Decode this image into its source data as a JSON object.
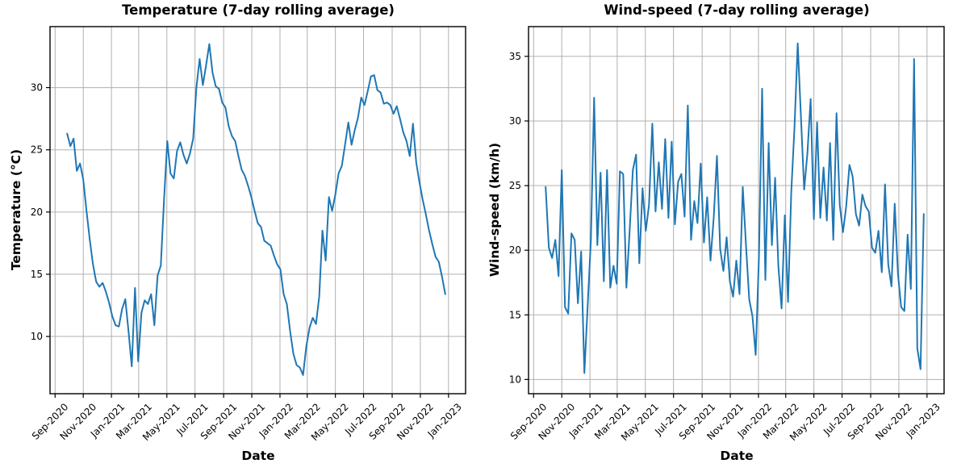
{
  "figure": {
    "background": "#ffffff",
    "grid_color": "#b0b0b0",
    "axis_color": "#000000",
    "line_color": "#1f77b4"
  },
  "chart_data": [
    {
      "id": "temperature",
      "type": "line",
      "title": "Temperature (7-day rolling average)",
      "xlabel": "Date",
      "ylabel": "Temperature (°C)",
      "line_color": "#1f77b4",
      "grid": true,
      "legend": "none",
      "ylim": [
        5.4,
        34.9
      ],
      "yticks": [
        10,
        15,
        20,
        25,
        30
      ],
      "xlim": [
        "2020-08-21",
        "2023-02-07"
      ],
      "xticks": [
        {
          "date": "2020-09-01",
          "label": "Sep-2020"
        },
        {
          "date": "2020-11-01",
          "label": "Nov-2020"
        },
        {
          "date": "2021-01-01",
          "label": "Jan-2021"
        },
        {
          "date": "2021-03-01",
          "label": "Mar-2021"
        },
        {
          "date": "2021-05-01",
          "label": "May-2021"
        },
        {
          "date": "2021-07-01",
          "label": "Jul-2021"
        },
        {
          "date": "2021-09-01",
          "label": "Sep-2021"
        },
        {
          "date": "2021-11-01",
          "label": "Nov-2021"
        },
        {
          "date": "2022-01-01",
          "label": "Jan-2022"
        },
        {
          "date": "2022-03-01",
          "label": "Mar-2022"
        },
        {
          "date": "2022-05-01",
          "label": "May-2022"
        },
        {
          "date": "2022-07-01",
          "label": "Jul-2022"
        },
        {
          "date": "2022-09-01",
          "label": "Sep-2022"
        },
        {
          "date": "2022-11-01",
          "label": "Nov-2022"
        },
        {
          "date": "2023-01-01",
          "label": "Jan-2023"
        }
      ],
      "series": {
        "name": "temperature",
        "start_date": "2020-09-27",
        "step_days": 7,
        "values": [
          26.3,
          25.3,
          25.9,
          23.3,
          23.9,
          22.6,
          20.1,
          17.8,
          15.8,
          14.4,
          14.0,
          14.3,
          13.6,
          12.7,
          11.6,
          10.9,
          10.8,
          12.2,
          13.0,
          10.4,
          7.6,
          13.9,
          8.0,
          11.9,
          12.9,
          12.6,
          13.4,
          10.9,
          14.9,
          15.7,
          21.0,
          25.7,
          23.1,
          22.7,
          24.9,
          25.6,
          24.6,
          23.9,
          24.7,
          25.9,
          30.0,
          32.3,
          30.2,
          31.8,
          33.5,
          31.2,
          30.1,
          29.9,
          28.8,
          28.4,
          26.9,
          26.1,
          25.7,
          24.5,
          23.4,
          22.9,
          22.1,
          21.2,
          20.1,
          19.1,
          18.8,
          17.7,
          17.5,
          17.3,
          16.5,
          15.8,
          15.4,
          13.4,
          12.6,
          10.4,
          8.6,
          7.7,
          7.5,
          6.9,
          9.2,
          10.7,
          11.5,
          11.0,
          13.2,
          18.5,
          16.1,
          21.2,
          20.1,
          21.4,
          23.1,
          23.7,
          25.4,
          27.2,
          25.4,
          26.6,
          27.6,
          29.2,
          28.6,
          29.7,
          30.9,
          31.0,
          29.8,
          29.6,
          28.7,
          28.8,
          28.6,
          27.9,
          28.5,
          27.5,
          26.4,
          25.7,
          24.5,
          27.1,
          24.0,
          22.4,
          21.0,
          19.8,
          18.5,
          17.4,
          16.4,
          16.0,
          14.8,
          13.4
        ]
      }
    },
    {
      "id": "wind-speed",
      "type": "line",
      "title": "Wind-speed (7-day rolling average)",
      "xlabel": "Date",
      "ylabel": "Wind-speed (km/h)",
      "line_color": "#1f77b4",
      "grid": true,
      "legend": "none",
      "ylim": [
        8.9,
        37.3
      ],
      "yticks": [
        10,
        15,
        20,
        25,
        30,
        35
      ],
      "xlim": [
        "2020-08-21",
        "2023-02-07"
      ],
      "xticks": [
        {
          "date": "2020-09-01",
          "label": "Sep-2020"
        },
        {
          "date": "2020-11-01",
          "label": "Nov-2020"
        },
        {
          "date": "2021-01-01",
          "label": "Jan-2021"
        },
        {
          "date": "2021-03-01",
          "label": "Mar-2021"
        },
        {
          "date": "2021-05-01",
          "label": "May-2021"
        },
        {
          "date": "2021-07-01",
          "label": "Jul-2021"
        },
        {
          "date": "2021-09-01",
          "label": "Sep-2021"
        },
        {
          "date": "2021-11-01",
          "label": "Nov-2021"
        },
        {
          "date": "2022-01-01",
          "label": "Jan-2022"
        },
        {
          "date": "2022-03-01",
          "label": "Mar-2022"
        },
        {
          "date": "2022-05-01",
          "label": "May-2022"
        },
        {
          "date": "2022-07-01",
          "label": "Jul-2022"
        },
        {
          "date": "2022-09-01",
          "label": "Sep-2022"
        },
        {
          "date": "2022-11-01",
          "label": "Nov-2022"
        },
        {
          "date": "2023-01-01",
          "label": "Jan-2023"
        }
      ],
      "series": {
        "name": "wind-speed",
        "start_date": "2020-09-27",
        "step_days": 7,
        "values": [
          24.9,
          20.2,
          19.4,
          20.8,
          18.0,
          26.2,
          15.6,
          15.1,
          21.3,
          20.8,
          15.9,
          19.9,
          10.5,
          15.6,
          20.8,
          31.8,
          20.4,
          26.0,
          17.6,
          26.2,
          17.1,
          18.8,
          17.4,
          26.1,
          25.9,
          17.1,
          21.5,
          26.2,
          27.4,
          19.0,
          24.8,
          21.5,
          23.5,
          29.8,
          23.0,
          26.8,
          23.2,
          28.6,
          22.5,
          28.4,
          22.0,
          25.3,
          25.9,
          22.6,
          31.2,
          20.8,
          23.8,
          22.1,
          26.7,
          20.6,
          24.1,
          19.2,
          22.5,
          27.3,
          20.1,
          18.4,
          21.0,
          17.6,
          16.4,
          19.2,
          16.6,
          24.9,
          20.4,
          16.2,
          14.9,
          11.9,
          19.4,
          32.5,
          17.7,
          28.3,
          20.4,
          25.6,
          18.8,
          15.5,
          22.7,
          16.0,
          24.5,
          29.5,
          36.0,
          30.3,
          24.7,
          27.5,
          31.7,
          22.4,
          29.9,
          22.5,
          26.4,
          22.3,
          28.3,
          20.8,
          30.6,
          23.5,
          21.4,
          23.4,
          26.6,
          25.7,
          22.8,
          21.9,
          24.3,
          23.4,
          23.0,
          20.2,
          19.8,
          21.5,
          18.3,
          25.1,
          18.9,
          17.2,
          23.6,
          18.2,
          15.6,
          15.3,
          21.2,
          17.0,
          34.8,
          12.4,
          10.8,
          22.8
        ]
      }
    }
  ]
}
